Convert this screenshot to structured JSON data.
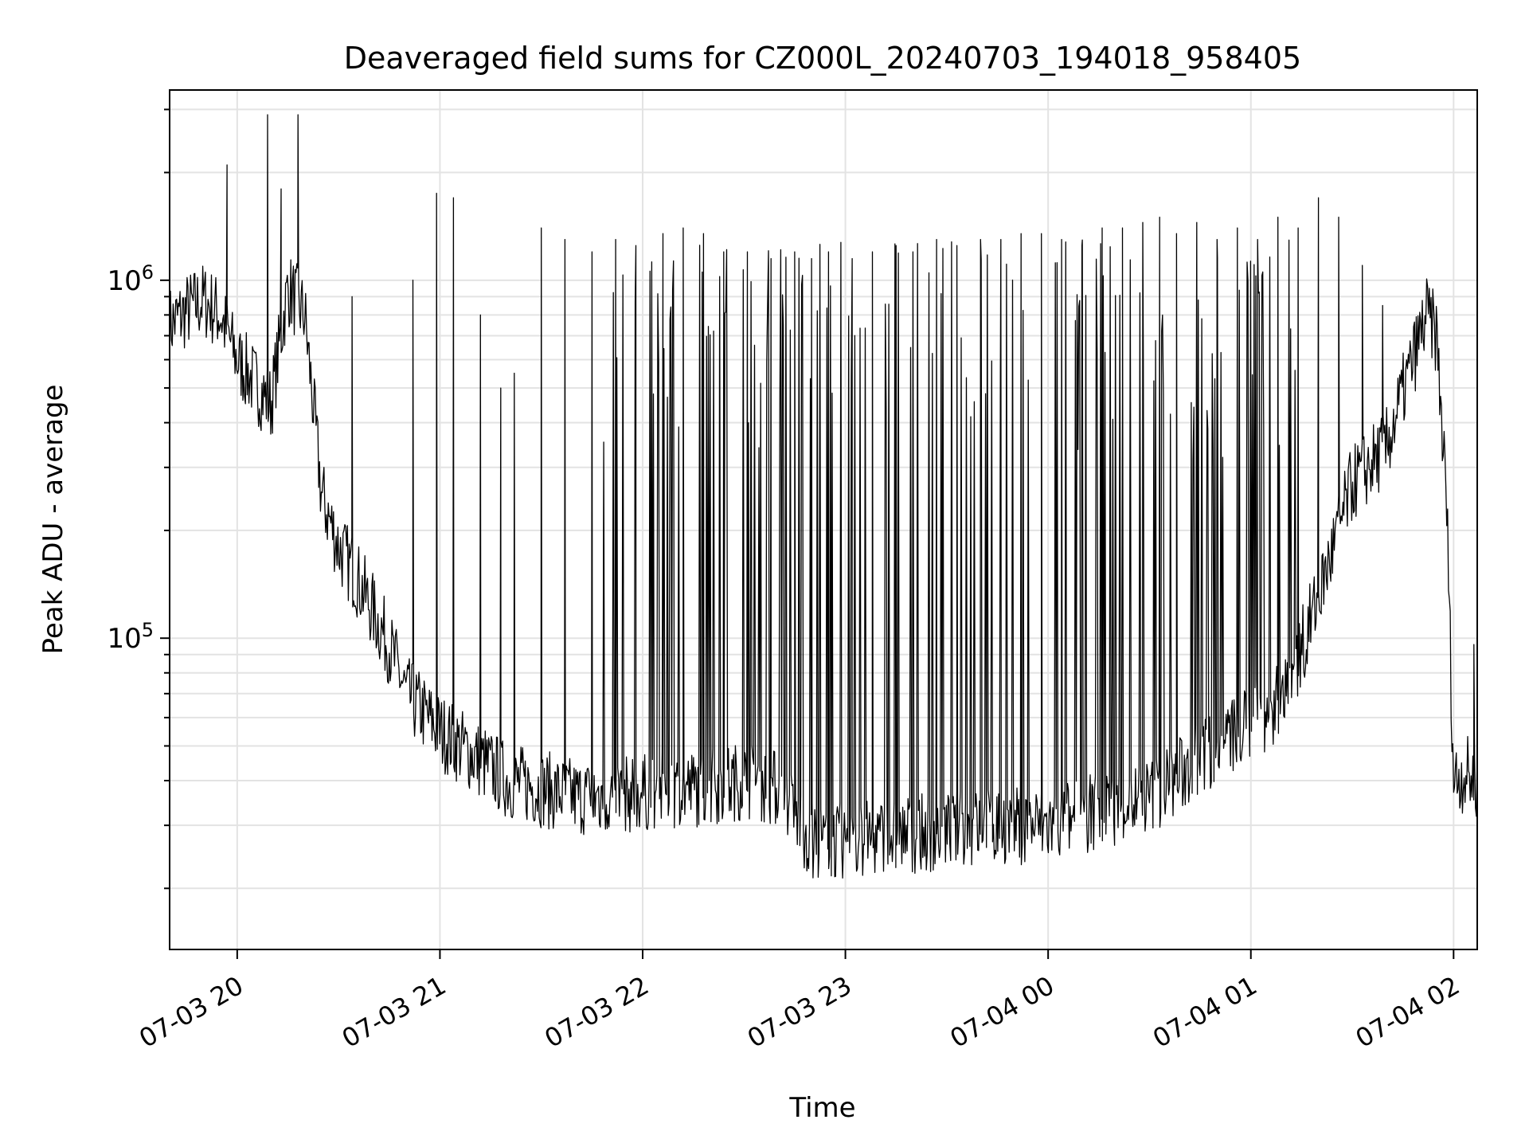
{
  "chart_data": {
    "type": "line",
    "title": "Deaveraged field sums for CZ000L_20240703_194018_958405",
    "xlabel": "Time",
    "ylabel": "Peak ADU - average",
    "yscale": "log",
    "grid": true,
    "legend": "none",
    "line_color": "#000000",
    "xlim": [
      "2024-07-03 19:40",
      "2024-07-04 02:07"
    ],
    "ylim": [
      13500,
      3400000
    ],
    "x_ticks": [
      {
        "value": "2024-07-03 20:00",
        "label": "07-03 20"
      },
      {
        "value": "2024-07-03 21:00",
        "label": "07-03 21"
      },
      {
        "value": "2024-07-03 22:00",
        "label": "07-03 22"
      },
      {
        "value": "2024-07-03 23:00",
        "label": "07-03 23"
      },
      {
        "value": "2024-07-04 00:00",
        "label": "07-04 00"
      },
      {
        "value": "2024-07-04 01:00",
        "label": "07-04 01"
      },
      {
        "value": "2024-07-04 02:00",
        "label": "07-04 02"
      }
    ],
    "y_major_ticks": [
      {
        "value": 100000,
        "base": "10",
        "exp": "5"
      },
      {
        "value": 1000000,
        "base": "10",
        "exp": "6"
      }
    ],
    "series": [
      {
        "x": [
          "2024-07-03 19:40",
          "2024-07-03 19:45",
          "2024-07-03 19:50",
          "2024-07-03 19:55",
          "2024-07-03 20:00",
          "2024-07-03 20:05",
          "2024-07-03 20:10",
          "2024-07-03 20:15",
          "2024-07-03 20:20",
          "2024-07-03 20:25",
          "2024-07-03 20:30",
          "2024-07-03 20:35",
          "2024-07-03 20:40",
          "2024-07-03 20:45",
          "2024-07-03 20:50",
          "2024-07-03 20:55",
          "2024-07-03 21:00",
          "2024-07-03 21:10",
          "2024-07-03 21:20",
          "2024-07-03 21:30",
          "2024-07-03 21:40",
          "2024-07-03 21:50",
          "2024-07-03 22:00",
          "2024-07-03 22:15",
          "2024-07-03 22:30",
          "2024-07-03 22:40",
          "2024-07-03 22:50",
          "2024-07-03 23:00",
          "2024-07-03 23:15",
          "2024-07-03 23:30",
          "2024-07-03 23:45",
          "2024-07-04 00:00",
          "2024-07-04 00:15",
          "2024-07-04 00:30",
          "2024-07-04 00:40",
          "2024-07-04 00:50",
          "2024-07-04 01:00",
          "2024-07-04 01:10",
          "2024-07-04 01:20",
          "2024-07-04 01:30",
          "2024-07-04 01:40",
          "2024-07-04 01:48",
          "2024-07-04 01:52",
          "2024-07-04 01:55",
          "2024-07-04 01:58",
          "2024-07-04 02:00",
          "2024-07-04 02:03",
          "2024-07-04 02:07"
        ],
        "y": [
          750000,
          820000,
          880000,
          800000,
          600000,
          520000,
          450000,
          950000,
          800000,
          250000,
          180000,
          150000,
          120000,
          95000,
          70000,
          62000,
          55000,
          47000,
          40000,
          38000,
          36000,
          36000,
          37000,
          38000,
          40000,
          38000,
          27000,
          27000,
          28000,
          29000,
          30000,
          30000,
          33000,
          36000,
          42000,
          50000,
          58000,
          68000,
          130000,
          270000,
          340000,
          600000,
          800000,
          700000,
          230000,
          40000,
          42000,
          40000
        ]
      }
    ],
    "spikes": {
      "x": [
        "2024-07-03 19:57",
        "2024-07-03 20:09",
        "2024-07-03 20:13",
        "2024-07-03 20:18",
        "2024-07-03 20:34",
        "2024-07-03 20:52",
        "2024-07-03 20:59",
        "2024-07-03 21:04",
        "2024-07-03 21:12",
        "2024-07-03 21:18",
        "2024-07-03 21:22",
        "2024-07-03 21:30",
        "2024-07-03 21:37",
        "2024-07-03 21:45",
        "2024-07-03 21:52",
        "2024-07-03 21:58",
        "2024-07-03 22:06",
        "2024-07-03 22:12",
        "2024-07-03 22:18",
        "2024-07-03 22:24",
        "2024-07-03 22:31",
        "2024-07-03 22:38",
        "2024-07-03 22:45",
        "2024-07-03 22:50",
        "2024-07-03 22:55",
        "2024-07-03 23:02",
        "2024-07-03 23:08",
        "2024-07-03 23:15",
        "2024-07-03 23:20",
        "2024-07-03 23:27",
        "2024-07-03 23:33",
        "2024-07-03 23:40",
        "2024-07-03 23:46",
        "2024-07-03 23:52",
        "2024-07-03 23:58",
        "2024-07-04 00:04",
        "2024-07-04 00:10",
        "2024-07-04 00:16",
        "2024-07-04 00:22",
        "2024-07-04 00:28",
        "2024-07-04 00:33",
        "2024-07-04 00:38",
        "2024-07-04 00:44",
        "2024-07-04 00:50",
        "2024-07-04 00:56",
        "2024-07-04 01:02",
        "2024-07-04 01:08",
        "2024-07-04 01:14",
        "2024-07-04 01:20",
        "2024-07-04 01:26",
        "2024-07-04 01:33",
        "2024-07-04 01:39",
        "2024-07-04 02:06"
      ],
      "y": [
        2100000,
        2900000,
        1800000,
        2900000,
        900000,
        1000000,
        1750000,
        1700000,
        800000,
        500000,
        550000,
        1400000,
        1300000,
        1200000,
        1300000,
        1250000,
        1350000,
        1400000,
        1350000,
        1200000,
        1200000,
        1150000,
        1200000,
        1150000,
        1200000,
        1150000,
        1200000,
        1250000,
        1200000,
        1300000,
        1250000,
        1300000,
        1300000,
        1350000,
        1350000,
        1300000,
        1250000,
        1400000,
        1400000,
        1450000,
        1500000,
        1350000,
        1450000,
        1300000,
        1400000,
        1300000,
        1500000,
        1400000,
        1700000,
        1500000,
        1100000,
        850000,
        96000
      ]
    }
  }
}
